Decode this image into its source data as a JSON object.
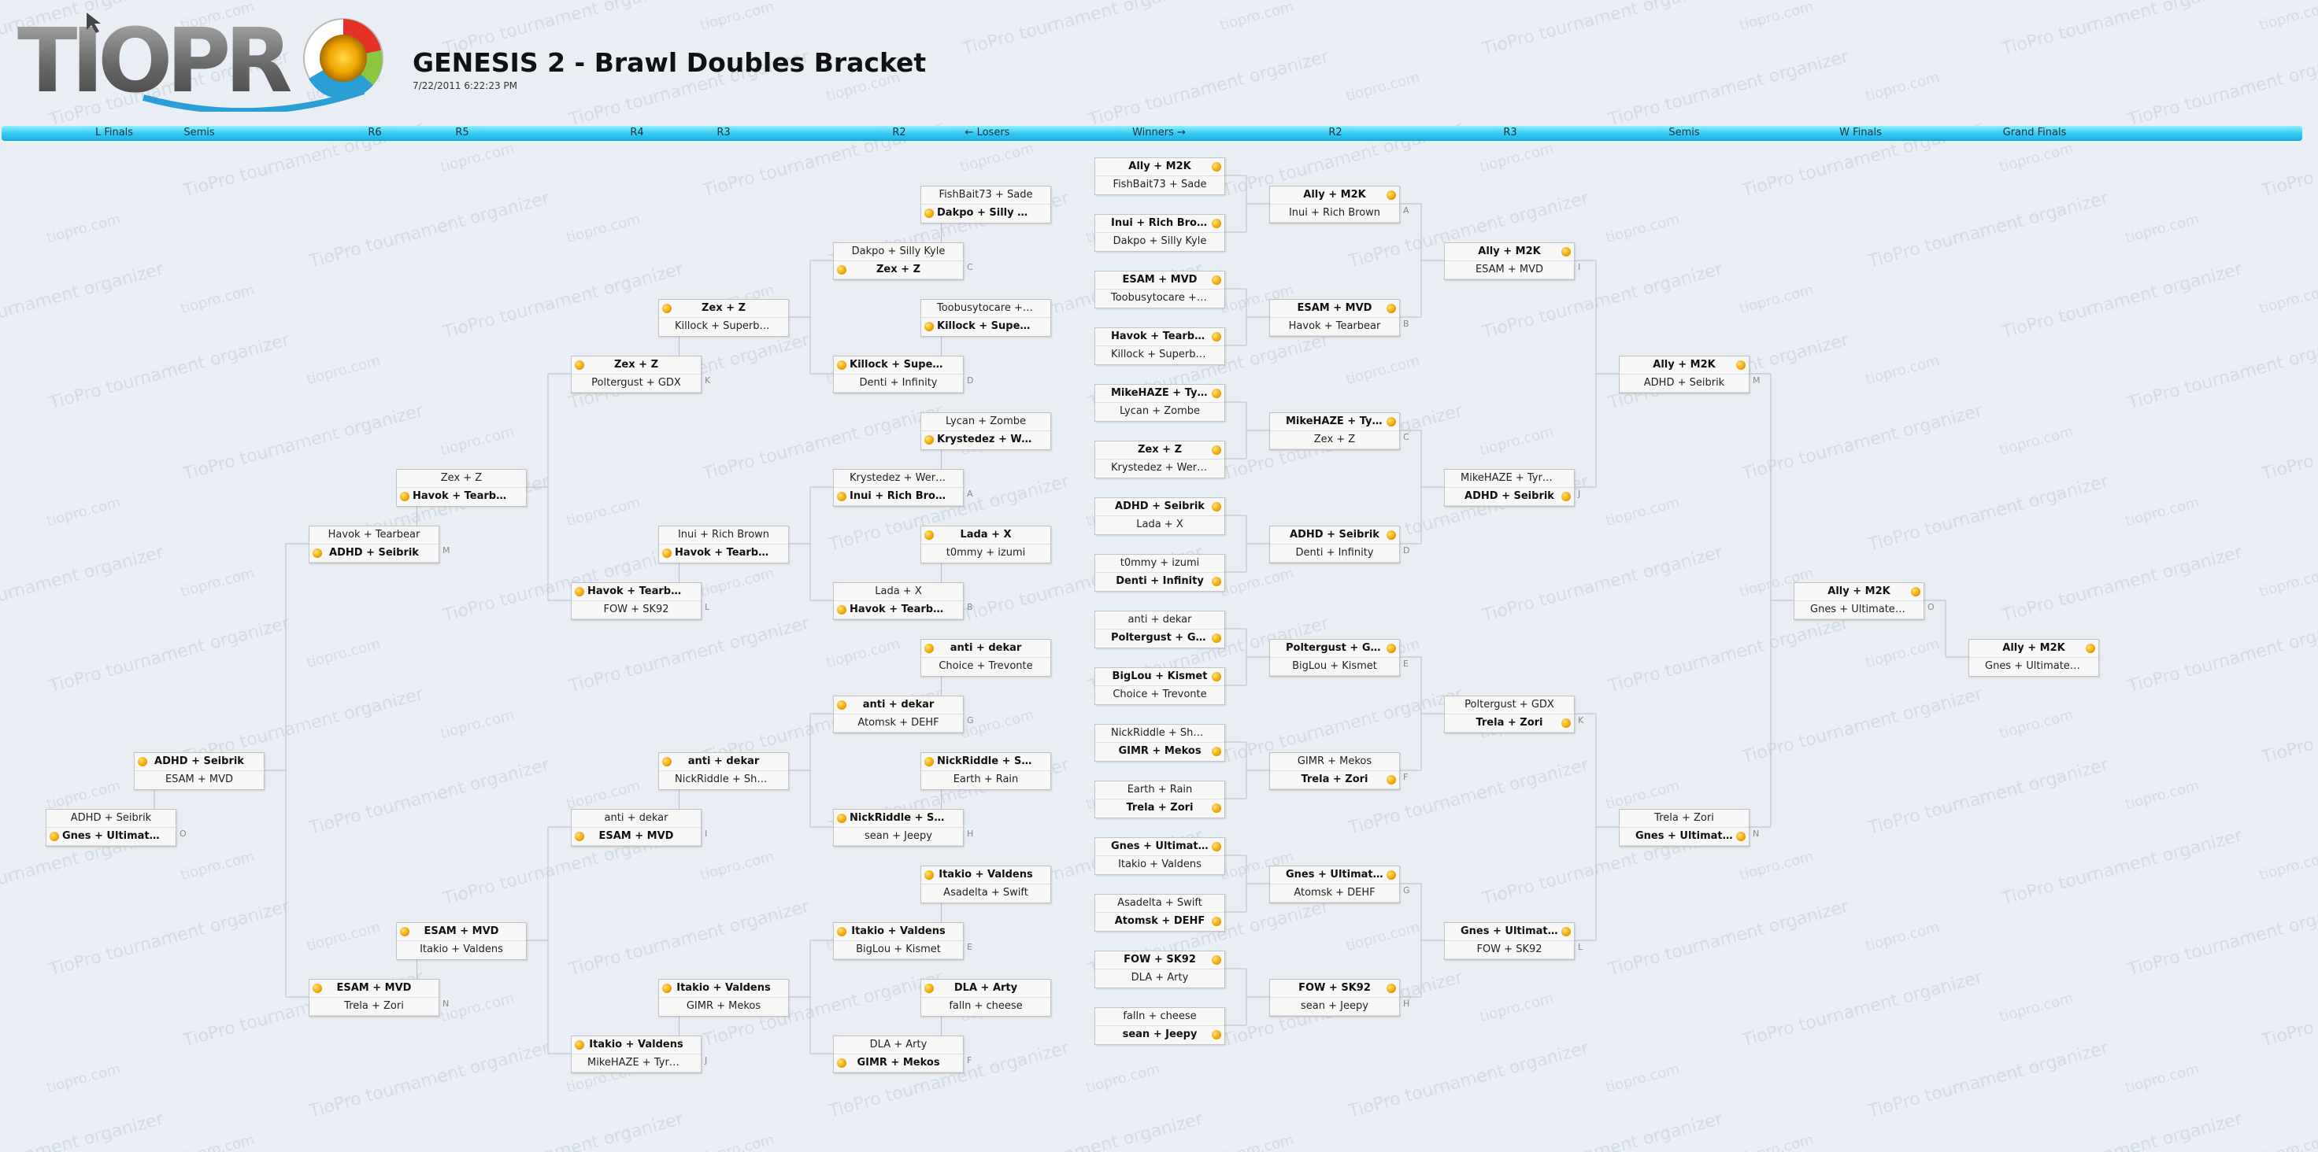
{
  "app": {
    "logo_text": "TIOPRO",
    "title": "GENESIS 2 - Brawl Doubles Bracket",
    "timestamp": "7/22/2011 6:22:23 PM",
    "watermarks": [
      "TioPro tournament organizer",
      "tiopro.com"
    ]
  },
  "colors": {
    "dot": "#f0a500",
    "bar": "#36c8f0",
    "background": "#e9eef4"
  },
  "rounds": [
    "L Finals",
    "Semis",
    "R6",
    "R5",
    "R4",
    "R3",
    "R2",
    "← Losers",
    "Winners →",
    "R2",
    "R3",
    "Semis",
    "W Finals",
    "Grand Finals"
  ],
  "matches": [
    {
      "id": "w1",
      "side": "W",
      "p1": "Ally + M2K",
      "p2": "FishBait73 + Sade",
      "win": 1,
      "label": ""
    },
    {
      "id": "w2",
      "side": "W",
      "p1": "Inui + Rich Brown",
      "p2": "Dakpo + Silly Kyle",
      "win": 1,
      "label": ""
    },
    {
      "id": "w3",
      "side": "W",
      "p1": "ESAM + MVD",
      "p2": "Toobusytocare + Z...",
      "win": 1,
      "label": ""
    },
    {
      "id": "w4",
      "side": "W",
      "p1": "Havok + Tearbear",
      "p2": "Killock + Superboo...",
      "win": 1,
      "label": ""
    },
    {
      "id": "w5",
      "side": "W",
      "p1": "MikeHAZE + Tyr...",
      "p2": "Lycan + Zombe",
      "win": 1,
      "label": ""
    },
    {
      "id": "w6",
      "side": "W",
      "p1": "Zex + Z",
      "p2": "Krystedez + Weruop",
      "win": 1,
      "label": ""
    },
    {
      "id": "w7",
      "side": "W",
      "p1": "ADHD + Seibrik",
      "p2": "Lada + X",
      "win": 1,
      "label": ""
    },
    {
      "id": "w8",
      "side": "W",
      "p1": "t0mmy + izumi",
      "p2": "Denti + Infinity",
      "win": 2,
      "label": ""
    },
    {
      "id": "w9",
      "side": "W",
      "p1": "anti + dekar",
      "p2": "Poltergust + GDX",
      "win": 2,
      "label": ""
    },
    {
      "id": "w10",
      "side": "W",
      "p1": "BigLou + Kismet",
      "p2": "Choice + Trevonte",
      "win": 1,
      "label": ""
    },
    {
      "id": "w11",
      "side": "W",
      "p1": "NickRiddle + Shaky",
      "p2": "GIMR + Mekos",
      "win": 2,
      "label": ""
    },
    {
      "id": "w12",
      "side": "W",
      "p1": "Earth + Rain",
      "p2": "Trela + Zori",
      "win": 2,
      "label": ""
    },
    {
      "id": "w13",
      "side": "W",
      "p1": "Gnes + Ultimate...",
      "p2": "Itakio + Valdens",
      "win": 1,
      "label": ""
    },
    {
      "id": "w14",
      "side": "W",
      "p1": "Asadelta + Swift",
      "p2": "Atomsk + DEHF",
      "win": 2,
      "label": ""
    },
    {
      "id": "w15",
      "side": "W",
      "p1": "FOW + SK92",
      "p2": "DLA + Arty",
      "win": 1,
      "label": ""
    },
    {
      "id": "w16",
      "side": "W",
      "p1": "falln + cheese",
      "p2": "sean + Jeepy",
      "win": 2,
      "label": ""
    },
    {
      "id": "r2a",
      "side": "W",
      "p1": "Ally + M2K",
      "p2": "Inui + Rich Brown",
      "win": 1,
      "label": "A"
    },
    {
      "id": "r2b",
      "side": "W",
      "p1": "ESAM + MVD",
      "p2": "Havok + Tearbear",
      "win": 1,
      "label": "B"
    },
    {
      "id": "r2c",
      "side": "W",
      "p1": "MikeHAZE + Tyr...",
      "p2": "Zex + Z",
      "win": 1,
      "label": "C"
    },
    {
      "id": "r2d",
      "side": "W",
      "p1": "ADHD + Seibrik",
      "p2": "Denti + Infinity",
      "win": 1,
      "label": "D"
    },
    {
      "id": "r2e",
      "side": "W",
      "p1": "Poltergust + GDX",
      "p2": "BigLou + Kismet",
      "win": 1,
      "label": "E"
    },
    {
      "id": "r2f",
      "side": "W",
      "p1": "GIMR + Mekos",
      "p2": "Trela + Zori",
      "win": 2,
      "label": "F"
    },
    {
      "id": "r2g",
      "side": "W",
      "p1": "Gnes + Ultimate...",
      "p2": "Atomsk + DEHF",
      "win": 1,
      "label": "G"
    },
    {
      "id": "r2h",
      "side": "W",
      "p1": "FOW + SK92",
      "p2": "sean + Jeepy",
      "win": 1,
      "label": "H"
    },
    {
      "id": "r3i",
      "side": "W",
      "p1": "Ally + M2K",
      "p2": "ESAM + MVD",
      "win": 1,
      "label": "I"
    },
    {
      "id": "r3j",
      "side": "W",
      "p1": "MikeHAZE + Tyrant",
      "p2": "ADHD + Seibrik",
      "win": 2,
      "label": "J"
    },
    {
      "id": "r3k",
      "side": "W",
      "p1": "Poltergust + GDX",
      "p2": "Trela + Zori",
      "win": 2,
      "label": "K"
    },
    {
      "id": "r3l",
      "side": "W",
      "p1": "Gnes + Ultimate...",
      "p2": "FOW + SK92",
      "win": 1,
      "label": "L"
    },
    {
      "id": "wsm",
      "side": "W",
      "p1": "Ally + M2K",
      "p2": "ADHD + Seibrik",
      "win": 1,
      "label": "M"
    },
    {
      "id": "wsn",
      "side": "W",
      "p1": "Trela + Zori",
      "p2": "Gnes + Ultimate...",
      "win": 2,
      "label": "N"
    },
    {
      "id": "wf",
      "side": "W",
      "p1": "Ally + M2K",
      "p2": "Gnes + UltimateRaz...",
      "win": 1,
      "label": "O"
    },
    {
      "id": "gf",
      "side": "W",
      "p1": "Ally + M2K",
      "p2": "Gnes + UltimateRaz...",
      "win": 1,
      "label": ""
    },
    {
      "id": "l2a",
      "side": "L",
      "p1": "FishBait73 + Sade",
      "p2": "Dakpo + Silly Kyle",
      "win": 2,
      "label": ""
    },
    {
      "id": "l2b",
      "side": "L",
      "p1": "Toobusytocare + Z...",
      "p2": "Killock + Superbo...",
      "win": 2,
      "label": ""
    },
    {
      "id": "l2c",
      "side": "L",
      "p1": "Lycan + Zombe",
      "p2": "Krystedez + Wer...",
      "win": 2,
      "label": ""
    },
    {
      "id": "l2d",
      "side": "L",
      "p1": "Lada + X",
      "p2": "t0mmy + izumi",
      "win": 1,
      "label": ""
    },
    {
      "id": "l2e",
      "side": "L",
      "p1": "anti + dekar",
      "p2": "Choice + Trevonte",
      "win": 1,
      "label": ""
    },
    {
      "id": "l2f",
      "side": "L",
      "p1": "NickRiddle + Sh...",
      "p2": "Earth + Rain",
      "win": 1,
      "label": ""
    },
    {
      "id": "l2g",
      "side": "L",
      "p1": "Itakio + Valdens",
      "p2": "Asadelta + Swift",
      "win": 1,
      "label": ""
    },
    {
      "id": "l2h",
      "side": "L",
      "p1": "DLA + Arty",
      "p2": "falln + cheese",
      "win": 1,
      "label": ""
    },
    {
      "id": "l3a",
      "side": "L",
      "p1": "Dakpo + Silly Kyle",
      "p2": "Zex + Z",
      "win": 2,
      "label": "C"
    },
    {
      "id": "l3b",
      "side": "L",
      "p1": "Killock + Superb...",
      "p2": "Denti + Infinity",
      "win": 1,
      "label": "D"
    },
    {
      "id": "l3c",
      "side": "L",
      "p1": "Krystedez + Weruop",
      "p2": "Inui + Rich Brown",
      "win": 2,
      "label": "A"
    },
    {
      "id": "l3d",
      "side": "L",
      "p1": "Lada + X",
      "p2": "Havok + Tearbear",
      "win": 2,
      "label": "B"
    },
    {
      "id": "l3e",
      "side": "L",
      "p1": "anti + dekar",
      "p2": "Atomsk + DEHF",
      "win": 1,
      "label": "G"
    },
    {
      "id": "l3f",
      "side": "L",
      "p1": "NickRiddle + Sh...",
      "p2": "sean + Jeepy",
      "win": 1,
      "label": "H"
    },
    {
      "id": "l3g",
      "side": "L",
      "p1": "Itakio + Valdens",
      "p2": "BigLou + Kismet",
      "win": 1,
      "label": "E"
    },
    {
      "id": "l3h",
      "side": "L",
      "p1": "DLA + Arty",
      "p2": "GIMR + Mekos",
      "win": 2,
      "label": "F"
    },
    {
      "id": "l4a",
      "side": "L",
      "p1": "Zex + Z",
      "p2": "Killock + Superboo...",
      "win": 1,
      "label": ""
    },
    {
      "id": "l4b",
      "side": "L",
      "p1": "Inui + Rich Brown",
      "p2": "Havok + Tearbear",
      "win": 2,
      "label": ""
    },
    {
      "id": "l4c",
      "side": "L",
      "p1": "anti + dekar",
      "p2": "NickRiddle + Shaky",
      "win": 1,
      "label": ""
    },
    {
      "id": "l4d",
      "side": "L",
      "p1": "Itakio + Valdens",
      "p2": "GIMR + Mekos",
      "win": 1,
      "label": ""
    },
    {
      "id": "l5a",
      "side": "L",
      "p1": "Zex + Z",
      "p2": "Poltergust + GDX",
      "win": 1,
      "label": "K"
    },
    {
      "id": "l5b",
      "side": "L",
      "p1": "Havok + Tearbear",
      "p2": "FOW + SK92",
      "win": 1,
      "label": "L"
    },
    {
      "id": "l5c",
      "side": "L",
      "p1": "anti + dekar",
      "p2": "ESAM + MVD",
      "win": 2,
      "label": "I"
    },
    {
      "id": "l5d",
      "side": "L",
      "p1": "Itakio + Valdens",
      "p2": "MikeHAZE + Tyrant",
      "win": 1,
      "label": "J"
    },
    {
      "id": "l6a",
      "side": "L",
      "p1": "Zex + Z",
      "p2": "Havok + Tearbear",
      "win": 2,
      "label": ""
    },
    {
      "id": "l6b",
      "side": "L",
      "p1": "ESAM + MVD",
      "p2": "Itakio + Valdens",
      "win": 1,
      "label": ""
    },
    {
      "id": "l7a",
      "side": "L",
      "p1": "Havok + Tearbear",
      "p2": "ADHD + Seibrik",
      "win": 2,
      "label": "M"
    },
    {
      "id": "l7b",
      "side": "L",
      "p1": "ESAM + MVD",
      "p2": "Trela + Zori",
      "win": 1,
      "label": "N"
    },
    {
      "id": "ls",
      "side": "L",
      "p1": "ADHD + Seibrik",
      "p2": "ESAM + MVD",
      "win": 1,
      "label": ""
    },
    {
      "id": "lf",
      "side": "L",
      "p1": "ADHD + Seibrik",
      "p2": "Gnes + Ultimate...",
      "win": 2,
      "label": "O"
    }
  ]
}
